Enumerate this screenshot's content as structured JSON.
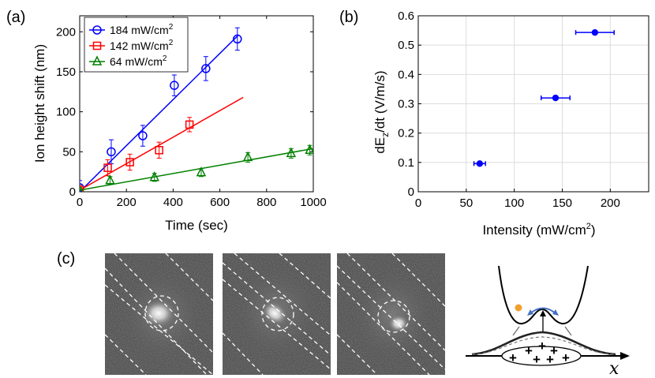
{
  "panels": {
    "a": "(a)",
    "b": "(b)",
    "c": "(c)"
  },
  "chart_data": [
    {
      "panel": "(a)",
      "type": "scatter",
      "xlabel": "Time (sec)",
      "ylabel": "Ion height shift (nm)",
      "xlim": [
        0,
        1000
      ],
      "ylim": [
        0,
        220
      ],
      "xticks": [
        "0",
        "200",
        "400",
        "600",
        "800",
        "1000"
      ],
      "yticks": [
        "0",
        "50",
        "100",
        "150",
        "200"
      ],
      "legend_position": "top-left",
      "series": [
        {
          "name": "184 mW/cm",
          "sup": "2",
          "color": "#0000ff",
          "marker": "circle",
          "points": [
            [
              0,
              5
            ],
            [
              135,
              50
            ],
            [
              270,
              70
            ],
            [
              405,
              133
            ],
            [
              540,
              154
            ],
            [
              675,
              191
            ]
          ],
          "errors": [
            9,
            15,
            13,
            13,
            15,
            14
          ],
          "fit": [
            [
              0,
              0
            ],
            [
              680,
              196
            ]
          ]
        },
        {
          "name": "142 mW/cm",
          "sup": "2",
          "color": "#ff0000",
          "marker": "square",
          "points": [
            [
              0,
              2
            ],
            [
              120,
              30
            ],
            [
              215,
              37
            ],
            [
              340,
              52
            ],
            [
              470,
              84
            ]
          ],
          "errors": [
            6,
            10,
            10,
            10,
            9
          ],
          "fit": [
            [
              0,
              2
            ],
            [
              700,
              118
            ]
          ]
        },
        {
          "name": "64 mW/cm",
          "sup": "2",
          "color": "#008000",
          "marker": "triangle",
          "points": [
            [
              0,
              1
            ],
            [
              130,
              14
            ],
            [
              320,
              18
            ],
            [
              520,
              24
            ],
            [
              720,
              43
            ],
            [
              905,
              48
            ],
            [
              985,
              52
            ]
          ],
          "errors": [
            4,
            5,
            5,
            5,
            6,
            6,
            6
          ],
          "fit": [
            [
              0,
              2
            ],
            [
              1000,
              54
            ]
          ]
        }
      ]
    },
    {
      "panel": "(b)",
      "type": "scatter",
      "xlabel": "Intensity (mW/cm",
      "xlabel_sup": "2",
      "xlabel_end": ")",
      "ylabel": "dE",
      "ylabel_sub": "z",
      "ylabel_end": "/dt (V/m/s)",
      "xlim": [
        0,
        240
      ],
      "ylim": [
        0,
        0.6
      ],
      "xticks": [
        "0",
        "50",
        "100",
        "150",
        "200"
      ],
      "yticks": [
        "0",
        "0.1",
        "0.2",
        "0.3",
        "0.4",
        "0.5",
        "0.6"
      ],
      "grid": true,
      "color": "#0000ff",
      "points": [
        [
          64,
          0.096
        ],
        [
          143,
          0.32
        ],
        [
          184,
          0.543
        ]
      ],
      "xerr": [
        6,
        15,
        20
      ]
    }
  ],
  "diagram": {
    "axis_label": "x",
    "charges": [
      "+",
      "+",
      "+",
      "+",
      "+",
      "+",
      "+"
    ]
  },
  "colors": {
    "accent": "#4472c4",
    "particle": "#f0a030"
  }
}
